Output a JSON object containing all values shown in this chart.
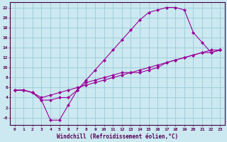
{
  "xlabel": "Windchill (Refroidissement éolien,°C)",
  "bg_color": "#cce8f0",
  "grid_color": "#99ccd9",
  "line_color": "#990099",
  "xmin": -0.5,
  "xmax": 23.5,
  "ymin": -1.5,
  "ymax": 23,
  "yticks": [
    0,
    2,
    4,
    6,
    8,
    10,
    12,
    14,
    16,
    18,
    20,
    22
  ],
  "xticks": [
    0,
    1,
    2,
    3,
    4,
    5,
    6,
    7,
    8,
    9,
    10,
    11,
    12,
    13,
    14,
    15,
    16,
    17,
    18,
    19,
    20,
    21,
    22,
    23
  ],
  "line1_x": [
    0,
    1,
    2,
    3,
    4,
    5,
    6,
    7,
    8,
    9,
    10,
    11,
    12,
    13,
    14,
    15,
    16,
    17,
    18,
    19,
    20,
    21,
    22,
    23
  ],
  "line1_y": [
    5.5,
    5.5,
    5.0,
    4.0,
    4.5,
    5.0,
    5.5,
    6.0,
    6.5,
    7.0,
    7.5,
    8.0,
    8.5,
    9.0,
    9.5,
    10.0,
    10.5,
    11.0,
    11.5,
    12.0,
    12.5,
    13.0,
    13.5,
    13.5
  ],
  "line2_x": [
    0,
    1,
    2,
    3,
    4,
    5,
    6,
    7,
    8,
    9,
    10,
    11,
    12,
    13,
    14,
    15,
    16,
    17,
    18,
    19,
    20,
    21,
    22,
    23
  ],
  "line2_y": [
    5.5,
    5.5,
    5.0,
    3.5,
    3.5,
    4.0,
    4.0,
    5.5,
    7.5,
    9.5,
    11.5,
    13.5,
    15.5,
    17.5,
    19.5,
    21.0,
    21.5,
    22.0,
    22.0,
    21.5,
    17.0,
    15.0,
    13.0,
    13.5
  ],
  "line3_x": [
    0,
    1,
    2,
    3,
    4,
    5,
    6,
    7,
    8,
    9,
    10,
    11,
    12,
    13,
    14,
    15,
    16,
    17,
    18,
    19,
    20,
    21,
    22,
    23
  ],
  "line3_y": [
    5.5,
    5.5,
    5.0,
    3.5,
    -0.5,
    -0.5,
    2.5,
    5.5,
    7.0,
    7.5,
    8.0,
    8.5,
    9.0,
    9.0,
    9.0,
    9.5,
    10.0,
    11.0,
    11.5,
    12.0,
    12.5,
    13.0,
    13.0,
    13.5
  ],
  "markersize": 2.5
}
